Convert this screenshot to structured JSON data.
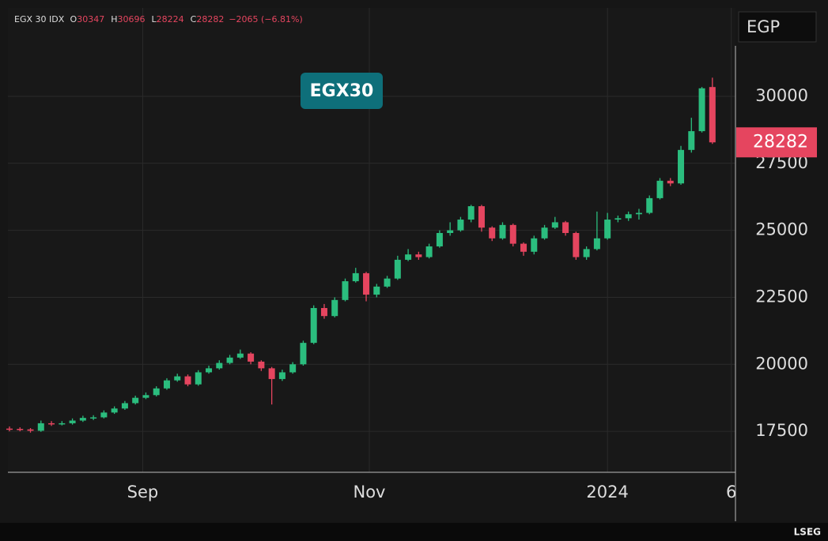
{
  "chart_data": {
    "type": "candlestick",
    "title": "EGX30",
    "symbol": "EGX 30 IDX",
    "currency": "EGP",
    "brand": "LSEG",
    "ohlc_labels": [
      "O",
      "H",
      "L",
      "C"
    ],
    "change_label": "−2065 (−6.81%)",
    "up_color": "#2bbd7e",
    "down_color": "#e5455f",
    "open": [
      17600,
      17590,
      17570,
      17520,
      17800,
      17780,
      17800,
      17900,
      18000,
      18020,
      18200,
      18350,
      18550,
      18750,
      18850,
      19100,
      19400,
      19550,
      19250,
      19700,
      19850,
      20050,
      20250,
      20400,
      20100,
      19850,
      19450,
      19700,
      20000,
      20800,
      22100,
      21800,
      22400,
      23100,
      23400,
      22600,
      22900,
      23200,
      23900,
      24100,
      24000,
      24400,
      24900,
      25000,
      25400,
      25900,
      25100,
      24700,
      25200,
      24500,
      24200,
      24700,
      25100,
      25300,
      24900,
      24000,
      24300,
      24700,
      25400,
      25450,
      25600,
      25650,
      26200,
      26850,
      26750,
      28000,
      28700,
      30347
    ],
    "high": [
      17680,
      17650,
      17620,
      17900,
      17880,
      17880,
      17980,
      18080,
      18100,
      18280,
      18430,
      18630,
      18830,
      18950,
      19180,
      19480,
      19650,
      19620,
      19780,
      19950,
      20150,
      20350,
      20550,
      20450,
      20150,
      19900,
      19800,
      20080,
      20880,
      22200,
      22250,
      22500,
      23200,
      23600,
      23450,
      23000,
      23300,
      24050,
      24300,
      24200,
      24500,
      25000,
      25300,
      25500,
      25950,
      25950,
      25150,
      25300,
      25250,
      24550,
      24800,
      25200,
      25500,
      25350,
      24950,
      24400,
      25700,
      25650,
      25550,
      25700,
      25800,
      26300,
      26950,
      26950,
      28150,
      29200,
      30350,
      30696
    ],
    "low": [
      17500,
      17500,
      17450,
      17480,
      17700,
      17720,
      17750,
      17850,
      17920,
      17980,
      18150,
      18300,
      18500,
      18700,
      18800,
      19050,
      19350,
      19180,
      19200,
      19650,
      19800,
      20000,
      20200,
      20000,
      19750,
      18500,
      19380,
      19650,
      19950,
      20750,
      21700,
      21750,
      22350,
      23050,
      22350,
      22500,
      22850,
      23150,
      23850,
      23900,
      23950,
      24350,
      24800,
      24950,
      25300,
      24950,
      24600,
      24650,
      24400,
      24050,
      24100,
      24650,
      25050,
      24800,
      23900,
      23900,
      24250,
      24650,
      25300,
      25350,
      25400,
      25600,
      26150,
      26650,
      26700,
      27900,
      28650,
      28224
    ],
    "close": [
      17590,
      17570,
      17520,
      17800,
      17780,
      17800,
      17900,
      18000,
      18020,
      18200,
      18350,
      18550,
      18750,
      18850,
      19100,
      19400,
      19550,
      19250,
      19700,
      19850,
      20050,
      20250,
      20400,
      20100,
      19850,
      19450,
      19700,
      20000,
      20800,
      22100,
      21800,
      22400,
      23100,
      23400,
      22600,
      22900,
      23200,
      23900,
      24100,
      24000,
      24400,
      24900,
      25000,
      25400,
      25900,
      25100,
      24700,
      25200,
      24500,
      24200,
      24700,
      25100,
      25300,
      24900,
      24000,
      24300,
      24700,
      25400,
      25450,
      25600,
      25650,
      26200,
      26850,
      26750,
      28000,
      28700,
      30300,
      28282
    ],
    "xlim": [
      -0.15,
      69.2
    ],
    "xticks": [
      {
        "value": 12.7,
        "label": "Sep"
      },
      {
        "value": 34.3,
        "label": "Nov"
      },
      {
        "value": 57.0,
        "label": "2024"
      },
      {
        "value": 68.8,
        "label": "6"
      }
    ],
    "ylim": [
      15970,
      33300
    ],
    "yticks": [
      17500,
      20000,
      22500,
      25000,
      27500,
      30000
    ],
    "grid": true
  }
}
